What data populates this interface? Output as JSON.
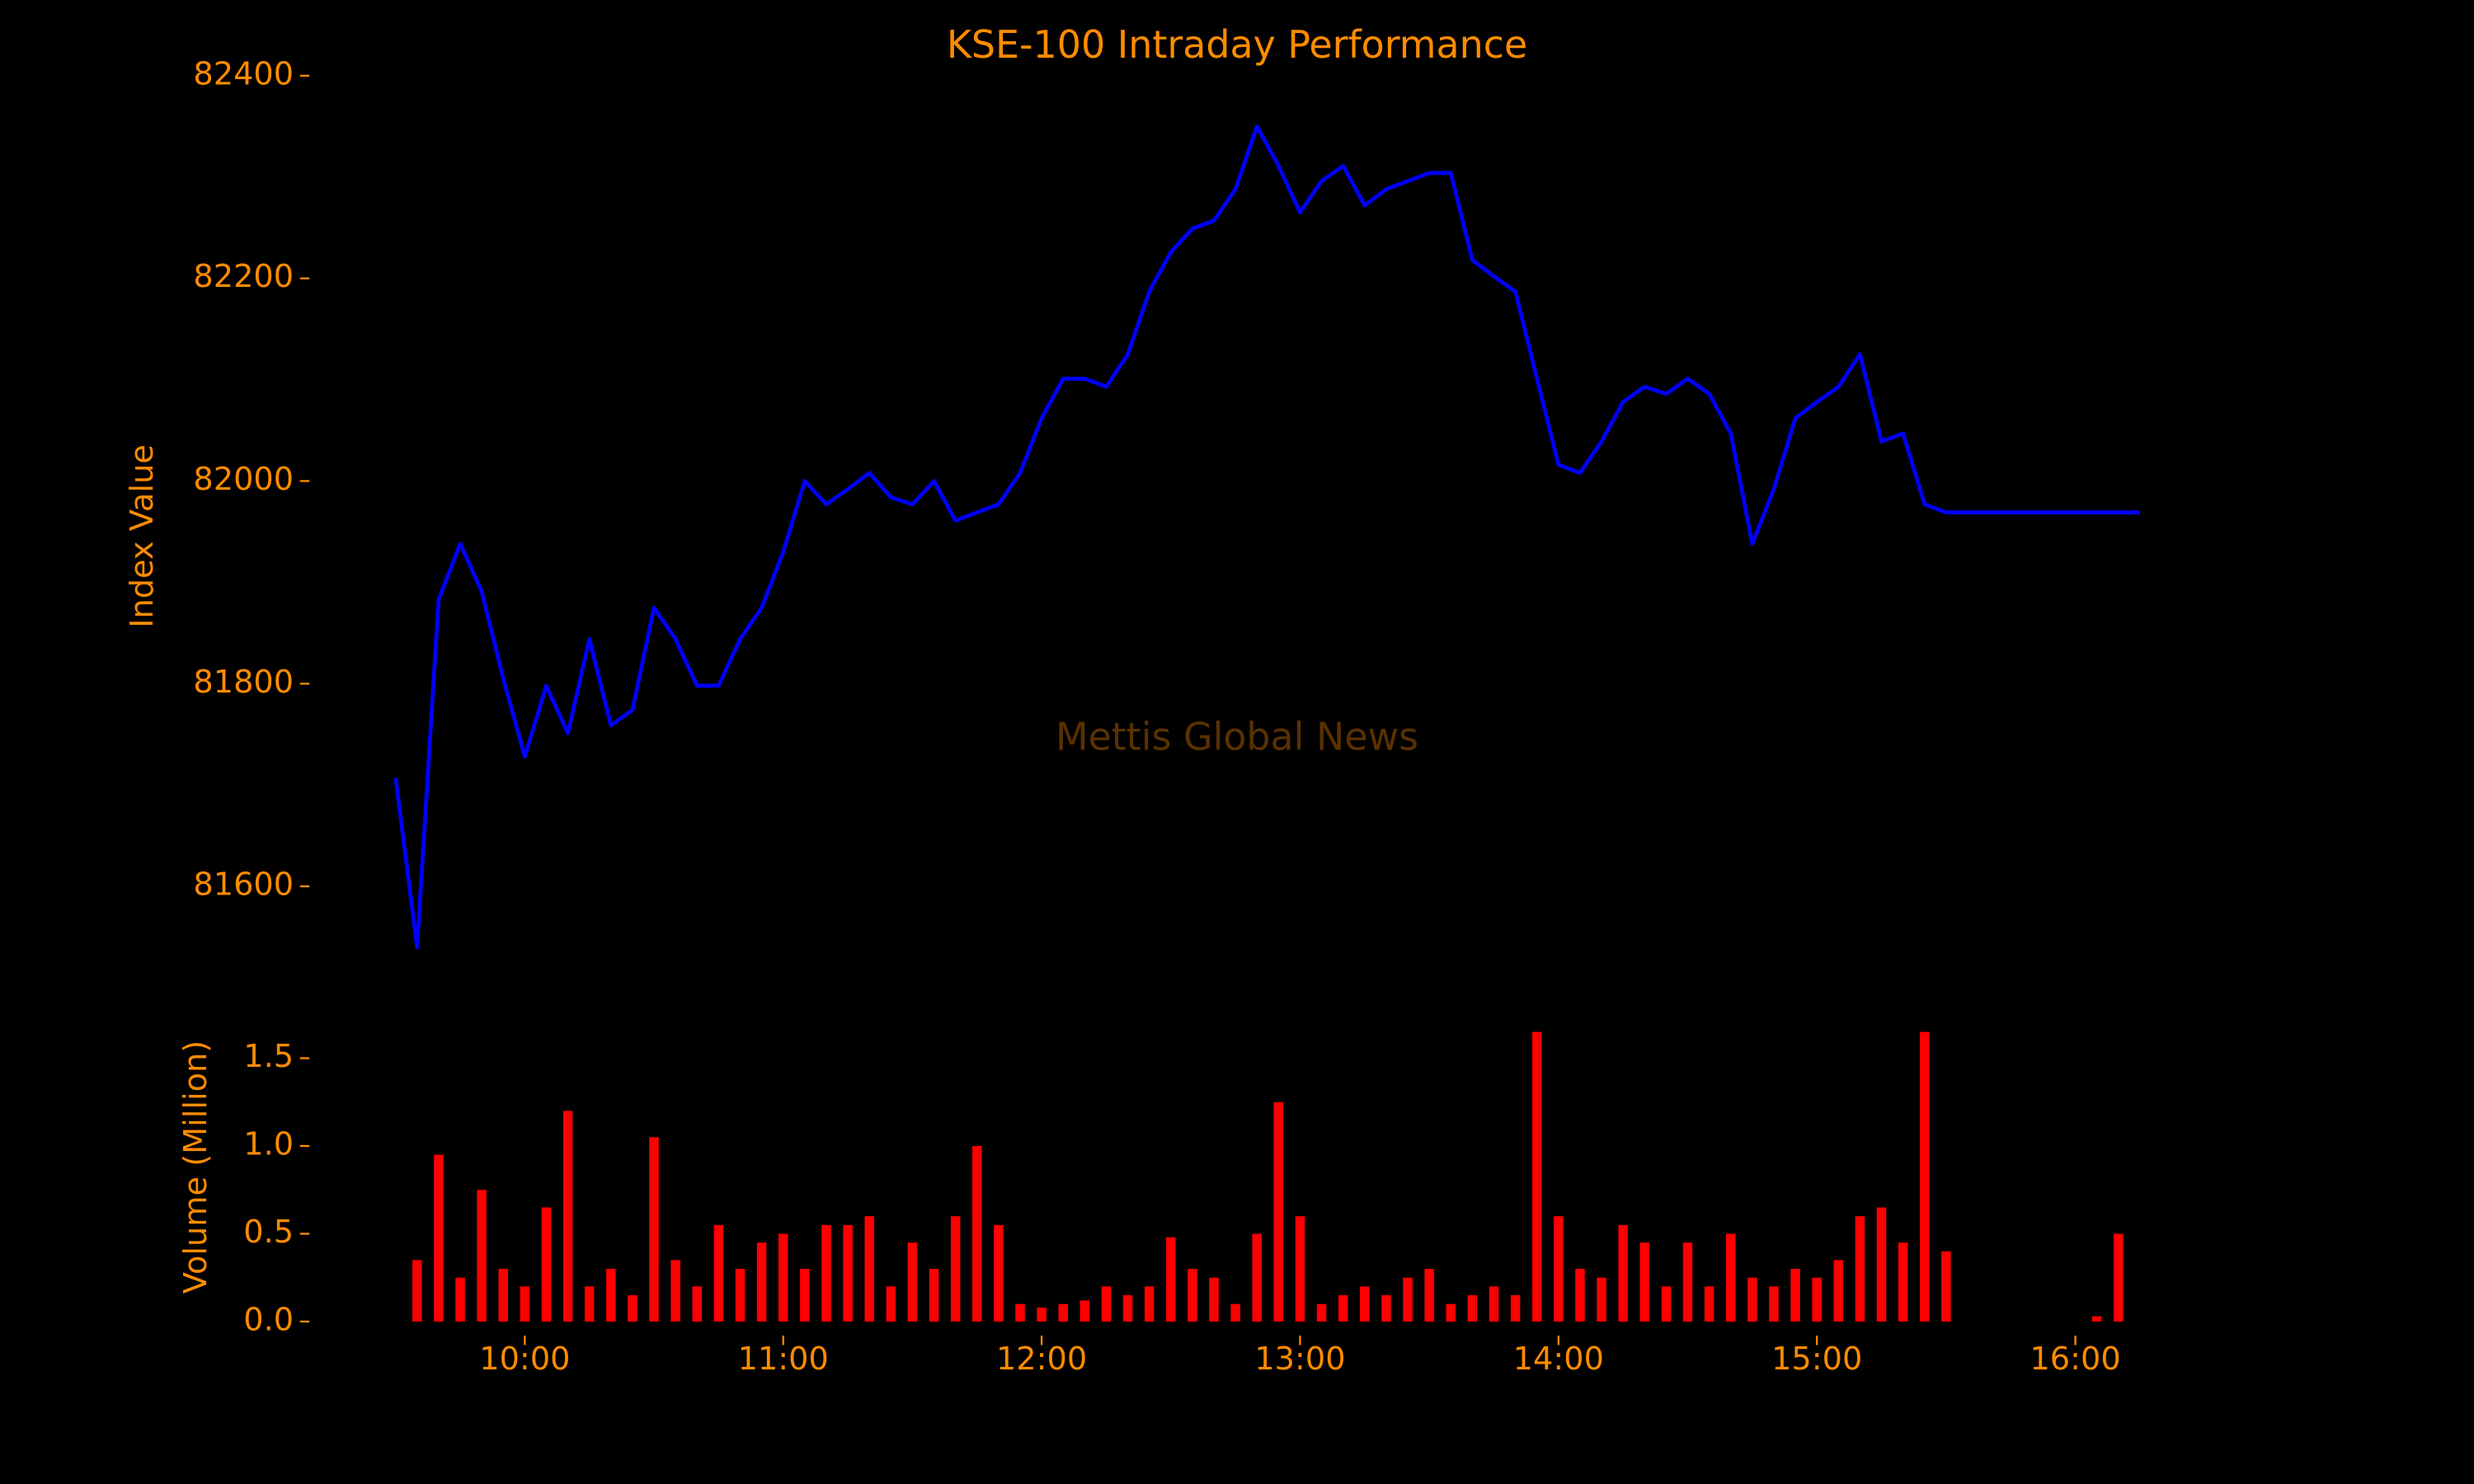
{
  "chart_data": [
    {
      "type": "line",
      "title": "KSE-100 Intraday Performance",
      "ylabel": "Index Value",
      "watermark": "Mettis Global News",
      "color": "#0000ff",
      "x": [
        "09:30",
        "09:35",
        "09:40",
        "09:45",
        "09:50",
        "09:55",
        "10:00",
        "10:05",
        "10:10",
        "10:15",
        "10:20",
        "10:25",
        "10:30",
        "10:35",
        "10:40",
        "10:45",
        "10:50",
        "10:55",
        "11:00",
        "11:05",
        "11:10",
        "11:15",
        "11:20",
        "11:25",
        "11:30",
        "11:35",
        "11:40",
        "11:45",
        "11:50",
        "11:55",
        "12:00",
        "12:05",
        "12:10",
        "12:15",
        "12:20",
        "12:25",
        "12:30",
        "12:35",
        "12:40",
        "12:45",
        "12:50",
        "12:55",
        "13:00",
        "13:05",
        "13:10",
        "13:15",
        "13:20",
        "13:25",
        "13:30",
        "13:35",
        "13:40",
        "13:45",
        "13:50",
        "13:55",
        "14:00",
        "14:05",
        "14:10",
        "14:15",
        "14:20",
        "14:25",
        "14:30",
        "14:35",
        "14:40",
        "14:45",
        "14:50",
        "14:55",
        "15:00",
        "15:05",
        "15:10",
        "15:15",
        "15:20",
        "15:25",
        "15:30",
        "15:45",
        "16:00",
        "16:15"
      ],
      "values": [
        81707,
        81540,
        81883,
        81938,
        81891,
        81805,
        81728,
        81798,
        81751,
        81844,
        81759,
        81774,
        81875,
        81844,
        81798,
        81798,
        81844,
        81875,
        81930,
        82000,
        81977,
        81992,
        82008,
        81984,
        81977,
        82000,
        81961,
        81969,
        81977,
        82008,
        82062,
        82101,
        82101,
        82093,
        82125,
        82187,
        82226,
        82249,
        82257,
        82288,
        82350,
        82311,
        82265,
        82296,
        82311,
        82272,
        82288,
        82296,
        82304,
        82304,
        82218,
        82202,
        82187,
        82101,
        82016,
        82008,
        82039,
        82078,
        82093,
        82086,
        82101,
        82086,
        82047,
        81938,
        81992,
        82062,
        82078,
        82093,
        82125,
        82039,
        82047,
        81977,
        81969,
        81969,
        81969,
        81969
      ],
      "xlim": [
        "09:10",
        "16:35"
      ],
      "ylim": [
        81490,
        82405
      ],
      "yticks": [
        81600,
        81800,
        82000,
        82200,
        82400
      ]
    },
    {
      "type": "bar",
      "ylabel": "Volume (Million)",
      "color": "#ff0000",
      "x": [
        "09:35",
        "09:40",
        "09:45",
        "09:50",
        "09:55",
        "10:00",
        "10:05",
        "10:10",
        "10:15",
        "10:20",
        "10:25",
        "10:30",
        "10:35",
        "10:40",
        "10:45",
        "10:50",
        "10:55",
        "11:00",
        "11:05",
        "11:10",
        "11:15",
        "11:20",
        "11:25",
        "11:30",
        "11:35",
        "11:40",
        "11:45",
        "11:50",
        "11:55",
        "12:00",
        "12:05",
        "12:10",
        "12:15",
        "12:20",
        "12:25",
        "12:30",
        "12:35",
        "12:40",
        "12:45",
        "12:50",
        "12:55",
        "13:00",
        "13:05",
        "13:10",
        "13:15",
        "13:20",
        "13:25",
        "13:30",
        "13:35",
        "13:40",
        "13:45",
        "13:50",
        "13:55",
        "14:00",
        "14:05",
        "14:10",
        "14:15",
        "14:20",
        "14:25",
        "14:30",
        "14:35",
        "14:40",
        "14:45",
        "14:50",
        "14:55",
        "15:00",
        "15:05",
        "15:10",
        "15:15",
        "15:20",
        "15:25",
        "15:30",
        "16:05",
        "16:10"
      ],
      "values": [
        0.35,
        0.95,
        0.25,
        0.75,
        0.3,
        0.2,
        0.65,
        1.2,
        0.2,
        0.3,
        0.15,
        1.05,
        0.35,
        0.2,
        0.55,
        0.3,
        0.45,
        0.5,
        0.3,
        0.55,
        0.55,
        0.6,
        0.2,
        0.45,
        0.3,
        0.6,
        1.0,
        0.55,
        0.1,
        0.08,
        0.1,
        0.12,
        0.2,
        0.15,
        0.2,
        0.48,
        0.3,
        0.25,
        0.1,
        0.5,
        1.25,
        0.6,
        0.1,
        0.15,
        0.2,
        0.15,
        0.25,
        0.3,
        0.1,
        0.15,
        0.2,
        0.15,
        1.65,
        0.6,
        0.3,
        0.25,
        0.55,
        0.45,
        0.2,
        0.45,
        0.2,
        0.5,
        0.25,
        0.2,
        0.3,
        0.25,
        0.35,
        0.6,
        0.65,
        0.45,
        1.65,
        0.4,
        0.03,
        0.5
      ],
      "xlim": [
        "09:10",
        "16:35"
      ],
      "xticks": [
        "10:00",
        "11:00",
        "12:00",
        "13:00",
        "14:00",
        "15:00",
        "16:00"
      ],
      "ylim": [
        -0.08,
        1.74
      ],
      "yticks": [
        {
          "value": 0,
          "label": "0.0"
        },
        0.5,
        {
          "value": 1,
          "label": "1.0"
        },
        1.5
      ]
    }
  ]
}
